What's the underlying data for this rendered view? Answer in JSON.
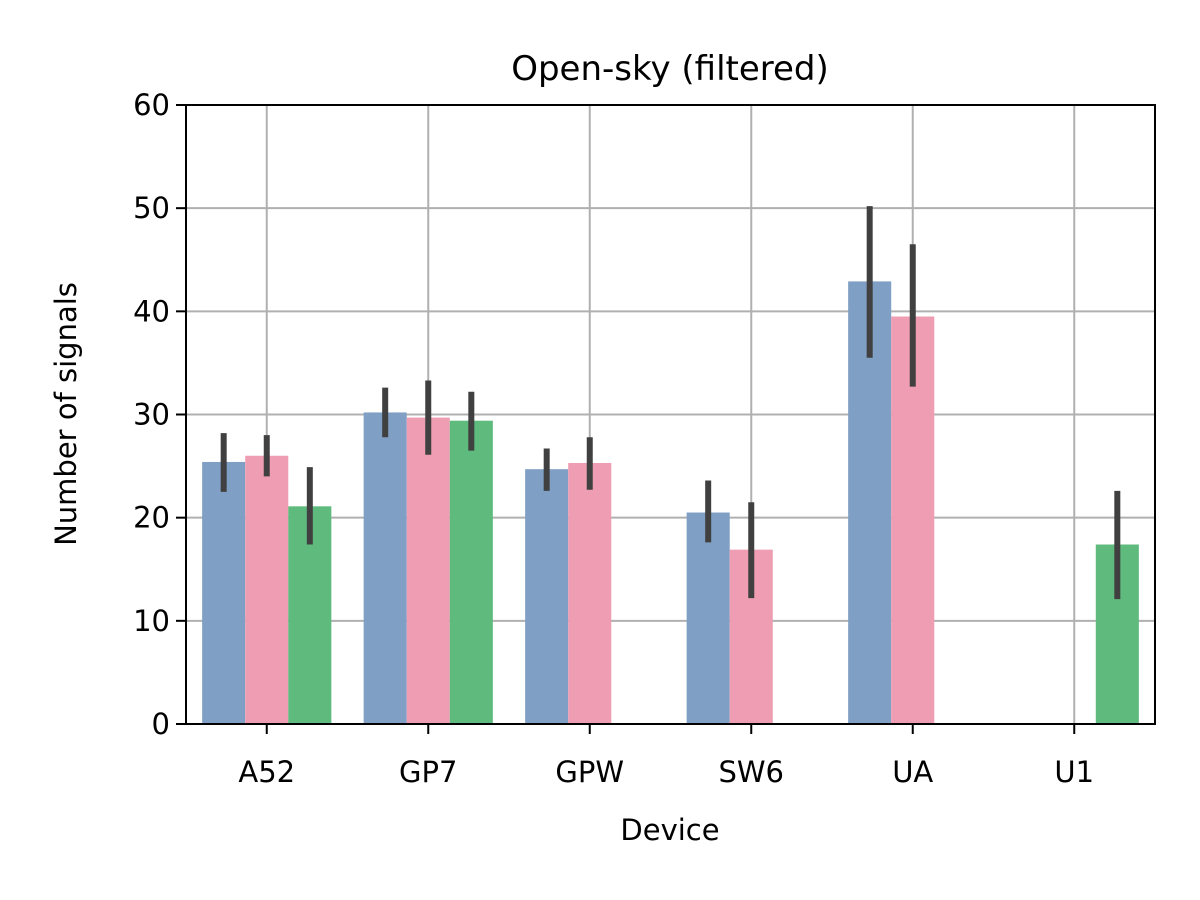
{
  "chart_data": {
    "type": "bar",
    "title": "Open-sky (filtered)",
    "xlabel": "Device",
    "ylabel": "Number of signals",
    "ylim": [
      0,
      60
    ],
    "yticks": [
      0,
      10,
      20,
      30,
      40,
      50,
      60
    ],
    "grid": true,
    "legend": "none",
    "categories": [
      "A52",
      "GP7",
      "GPW",
      "SW6",
      "UA",
      "U1"
    ],
    "series": [
      {
        "color": "#7f9fc4",
        "values": [
          25.4,
          30.2,
          24.7,
          20.5,
          42.9,
          null
        ],
        "err_low": [
          22.5,
          27.8,
          22.6,
          17.6,
          35.5,
          null
        ],
        "err_high": [
          28.2,
          32.6,
          26.7,
          23.6,
          50.2,
          null
        ]
      },
      {
        "color": "#ee9db2",
        "values": [
          26.0,
          29.7,
          25.3,
          16.9,
          39.5,
          null
        ],
        "err_low": [
          24.0,
          26.1,
          22.7,
          12.2,
          32.7,
          null
        ],
        "err_high": [
          28.0,
          33.3,
          27.8,
          21.5,
          46.5,
          null
        ]
      },
      {
        "color": "#5fba7d",
        "values": [
          21.1,
          29.4,
          null,
          null,
          null,
          17.4
        ],
        "err_low": [
          17.4,
          26.5,
          null,
          null,
          null,
          12.1
        ],
        "err_high": [
          24.9,
          32.2,
          null,
          null,
          null,
          22.6
        ]
      }
    ]
  }
}
